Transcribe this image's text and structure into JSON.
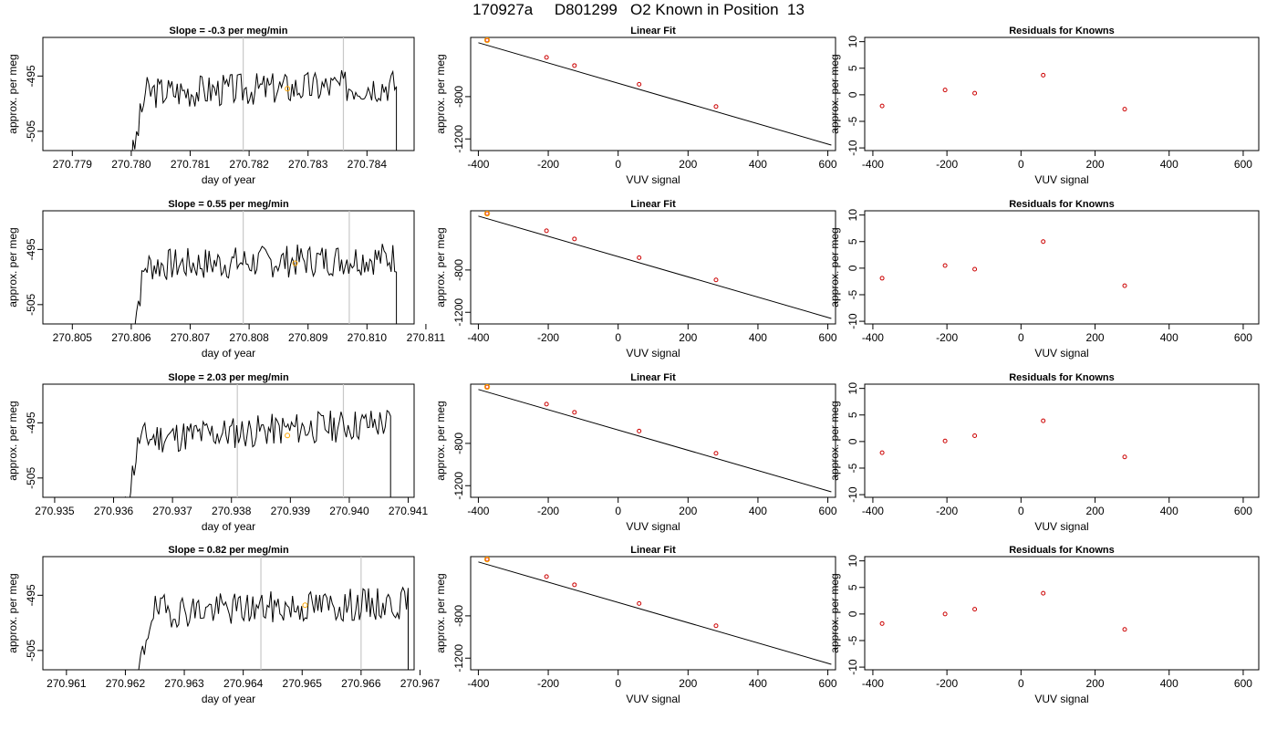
{
  "figure": {
    "title": "170927a     D801299   O2 Known in Position  13"
  },
  "colors": {
    "trace": "#000000",
    "vline": "#c8c8c8",
    "highlight": "#ffa500",
    "residual": "#cc0000",
    "fit_line": "#000000",
    "frame": "#000000"
  },
  "chart_data": [
    {
      "type": "line",
      "row": 1,
      "panel": "time-series",
      "title": "Slope =  -0.3  per meg/min",
      "xlabel": "day of year",
      "ylabel": "approx. per meg",
      "xlim": [
        270.7785,
        270.7848
      ],
      "ylim": [
        -508.5,
        -488
      ],
      "xticks": [
        270.779,
        270.78,
        270.781,
        270.782,
        270.783,
        270.784
      ],
      "xtick_labels": [
        "270.779",
        "270.780",
        "270.781",
        "270.782",
        "270.783",
        "270.784"
      ],
      "yticks": [
        -495,
        -505
      ],
      "ytick_labels": [
        "-495",
        "-505"
      ],
      "vlines": [
        270.7819,
        270.7836
      ],
      "trace_range": [
        270.78,
        270.7845
      ],
      "trace_seed": 3,
      "highlight_point": {
        "x": 270.78265,
        "y": -497.3
      }
    },
    {
      "type": "line",
      "row": 2,
      "panel": "time-series",
      "title": "Slope =  0.55  per meg/min",
      "xlabel": "day of year",
      "ylabel": "approx. per meg",
      "xlim": [
        270.8045,
        270.8108
      ],
      "ylim": [
        -508.5,
        -488
      ],
      "xticks": [
        270.805,
        270.806,
        270.807,
        270.808,
        270.809,
        270.81,
        270.811
      ],
      "xtick_labels": [
        "270.805",
        "270.806",
        "270.807",
        "270.808",
        "270.809",
        "270.810",
        "270.811"
      ],
      "yticks": [
        -495,
        -505
      ],
      "ytick_labels": [
        "-495",
        "-505"
      ],
      "vlines": [
        270.8079,
        270.8097
      ],
      "trace_range": [
        270.806,
        270.8105
      ],
      "trace_seed": 7,
      "highlight_point": {
        "x": 270.80878,
        "y": -497.5
      }
    },
    {
      "type": "line",
      "row": 3,
      "panel": "time-series",
      "title": "Slope =  2.03  per meg/min",
      "xlabel": "day of year",
      "ylabel": "approx. per meg",
      "xlim": [
        270.9348,
        270.9411
      ],
      "ylim": [
        -508.5,
        -488
      ],
      "xticks": [
        270.935,
        270.936,
        270.937,
        270.938,
        270.939,
        270.94,
        270.941
      ],
      "xtick_labels": [
        "270.935",
        "270.936",
        "270.937",
        "270.938",
        "270.939",
        "270.940",
        "270.941"
      ],
      "yticks": [
        -495,
        -505
      ],
      "ytick_labels": [
        "-495",
        "-505"
      ],
      "vlines": [
        270.9381,
        270.9399
      ],
      "trace_range": [
        270.9362,
        270.9407
      ],
      "trace_seed": 11,
      "highlight_point": {
        "x": 270.93895,
        "y": -497.3
      }
    },
    {
      "type": "line",
      "row": 4,
      "panel": "time-series",
      "title": "Slope =  0.82  per meg/min",
      "xlabel": "day of year",
      "ylabel": "approx. per meg",
      "xlim": [
        270.9606,
        270.9669
      ],
      "ylim": [
        -508.5,
        -488
      ],
      "xticks": [
        270.961,
        270.962,
        270.963,
        270.964,
        270.965,
        270.966,
        270.967
      ],
      "xtick_labels": [
        "270.961",
        "270.962",
        "270.963",
        "270.964",
        "270.965",
        "270.966",
        "270.967"
      ],
      "yticks": [
        -495,
        -505
      ],
      "ytick_labels": [
        "-495",
        "-505"
      ],
      "vlines": [
        270.9643,
        270.966
      ],
      "trace_range": [
        270.9622,
        270.9668
      ],
      "trace_seed": 19,
      "highlight_point": {
        "x": 270.96505,
        "y": -496.8
      }
    },
    {
      "type": "scatter",
      "row": 1,
      "panel": "linear-fit",
      "title": "Linear Fit",
      "xlabel": "VUV signal",
      "ylabel": "approx. per meg",
      "xlim": [
        -422,
        622
      ],
      "ylim": [
        -1310,
        -240
      ],
      "xticks": [
        -400,
        -200,
        0,
        200,
        400,
        600
      ],
      "xtick_labels": [
        "-400",
        "-200",
        "0",
        "200",
        "400",
        "600"
      ],
      "yticks": [
        -800,
        -1200
      ],
      "ytick_labels": [
        "-800",
        "-1200"
      ],
      "fit_line": [
        [
          -400,
          -290
        ],
        [
          610,
          -1258
        ]
      ],
      "points": [
        [
          -375,
          -266
        ],
        [
          -205,
          -429
        ],
        [
          -125,
          -506
        ],
        [
          60,
          -683
        ],
        [
          280,
          -894
        ]
      ],
      "highlight_point": [
        -375,
        -266
      ]
    },
    {
      "type": "scatter",
      "row": 2,
      "panel": "linear-fit",
      "title": "Linear Fit",
      "xlabel": "VUV signal",
      "ylabel": "approx. per meg",
      "xlim": [
        -422,
        622
      ],
      "ylim": [
        -1310,
        -240
      ],
      "xticks": [
        -400,
        -200,
        0,
        200,
        400,
        600
      ],
      "xtick_labels": [
        "-400",
        "-200",
        "0",
        "200",
        "400",
        "600"
      ],
      "yticks": [
        -800,
        -1200
      ],
      "ytick_labels": [
        "-800",
        "-1200"
      ],
      "fit_line": [
        [
          -400,
          -290
        ],
        [
          610,
          -1258
        ]
      ],
      "points": [
        [
          -375,
          -266
        ],
        [
          -205,
          -429
        ],
        [
          -125,
          -506
        ],
        [
          60,
          -683
        ],
        [
          280,
          -894
        ]
      ],
      "highlight_point": [
        -375,
        -266
      ]
    },
    {
      "type": "scatter",
      "row": 3,
      "panel": "linear-fit",
      "title": "Linear Fit",
      "xlabel": "VUV signal",
      "ylabel": "approx. per meg",
      "xlim": [
        -422,
        622
      ],
      "ylim": [
        -1310,
        -240
      ],
      "xticks": [
        -400,
        -200,
        0,
        200,
        400,
        600
      ],
      "xtick_labels": [
        "-400",
        "-200",
        "0",
        "200",
        "400",
        "600"
      ],
      "yticks": [
        -800,
        -1200
      ],
      "ytick_labels": [
        "-800",
        "-1200"
      ],
      "fit_line": [
        [
          -400,
          -290
        ],
        [
          610,
          -1258
        ]
      ],
      "points": [
        [
          -375,
          -266
        ],
        [
          -205,
          -429
        ],
        [
          -125,
          -506
        ],
        [
          60,
          -683
        ],
        [
          280,
          -894
        ]
      ],
      "highlight_point": [
        -375,
        -266
      ]
    },
    {
      "type": "scatter",
      "row": 4,
      "panel": "linear-fit",
      "title": "Linear Fit",
      "xlabel": "VUV signal",
      "ylabel": "approx. per meg",
      "xlim": [
        -422,
        622
      ],
      "ylim": [
        -1310,
        -240
      ],
      "xticks": [
        -400,
        -200,
        0,
        200,
        400,
        600
      ],
      "xtick_labels": [
        "-400",
        "-200",
        "0",
        "200",
        "400",
        "600"
      ],
      "yticks": [
        -800,
        -1200
      ],
      "ytick_labels": [
        "-800",
        "-1200"
      ],
      "fit_line": [
        [
          -400,
          -290
        ],
        [
          610,
          -1258
        ]
      ],
      "points": [
        [
          -375,
          -266
        ],
        [
          -205,
          -429
        ],
        [
          -125,
          -506
        ],
        [
          60,
          -683
        ],
        [
          280,
          -894
        ]
      ],
      "highlight_point": [
        -375,
        -266
      ]
    },
    {
      "type": "scatter",
      "row": 1,
      "panel": "residuals",
      "title": "Residuals for Knowns",
      "xlabel": "VUV signal",
      "ylabel": "approx. per meg",
      "xlim": [
        -422,
        642
      ],
      "ylim": [
        -10.5,
        10.8
      ],
      "xticks": [
        -400,
        -200,
        0,
        200,
        400,
        600
      ],
      "xtick_labels": [
        "-400",
        "-200",
        "0",
        "200",
        "400",
        "600"
      ],
      "yticks": [
        10,
        5,
        0,
        -5,
        -10
      ],
      "ytick_labels": [
        "10",
        "5",
        "0",
        "-5",
        "-10"
      ],
      "points": [
        [
          -375,
          -2.1
        ],
        [
          -205,
          0.9
        ],
        [
          -125,
          0.3
        ],
        [
          60,
          3.7
        ],
        [
          280,
          -2.7
        ]
      ]
    },
    {
      "type": "scatter",
      "row": 2,
      "panel": "residuals",
      "title": "Residuals for Knowns",
      "xlabel": "VUV signal",
      "ylabel": "approx. per meg",
      "xlim": [
        -422,
        642
      ],
      "ylim": [
        -10.5,
        10.8
      ],
      "xticks": [
        -400,
        -200,
        0,
        200,
        400,
        600
      ],
      "xtick_labels": [
        "-400",
        "-200",
        "0",
        "200",
        "400",
        "600"
      ],
      "yticks": [
        10,
        5,
        0,
        -5,
        -10
      ],
      "ytick_labels": [
        "10",
        "5",
        "0",
        "-5",
        "-10"
      ],
      "points": [
        [
          -375,
          -1.9
        ],
        [
          -205,
          0.5
        ],
        [
          -125,
          -0.2
        ],
        [
          60,
          5.0
        ],
        [
          280,
          -3.3
        ]
      ]
    },
    {
      "type": "scatter",
      "row": 3,
      "panel": "residuals",
      "title": "Residuals for Knowns",
      "xlabel": "VUV signal",
      "ylabel": "approx. per meg",
      "xlim": [
        -422,
        642
      ],
      "ylim": [
        -10.5,
        10.8
      ],
      "xticks": [
        -400,
        -200,
        0,
        200,
        400,
        600
      ],
      "xtick_labels": [
        "-400",
        "-200",
        "0",
        "200",
        "400",
        "600"
      ],
      "yticks": [
        10,
        5,
        0,
        -5,
        -10
      ],
      "ytick_labels": [
        "10",
        "5",
        "0",
        "-5",
        "-10"
      ],
      "points": [
        [
          -375,
          -2.1
        ],
        [
          -205,
          0.1
        ],
        [
          -125,
          1.1
        ],
        [
          60,
          3.9
        ],
        [
          280,
          -2.9
        ]
      ]
    },
    {
      "type": "scatter",
      "row": 4,
      "panel": "residuals",
      "title": "Residuals for Knowns",
      "xlabel": "VUV signal",
      "ylabel": "approx. per meg",
      "xlim": [
        -422,
        642
      ],
      "ylim": [
        -10.5,
        10.8
      ],
      "xticks": [
        -400,
        -200,
        0,
        200,
        400,
        600
      ],
      "xtick_labels": [
        "-400",
        "-200",
        "0",
        "200",
        "400",
        "600"
      ],
      "yticks": [
        10,
        5,
        0,
        -5,
        -10
      ],
      "ytick_labels": [
        "10",
        "5",
        "0",
        "-5",
        "-10"
      ],
      "points": [
        [
          -375,
          -1.8
        ],
        [
          -205,
          0.0
        ],
        [
          -125,
          0.9
        ],
        [
          60,
          3.9
        ],
        [
          280,
          -2.9
        ]
      ]
    }
  ]
}
